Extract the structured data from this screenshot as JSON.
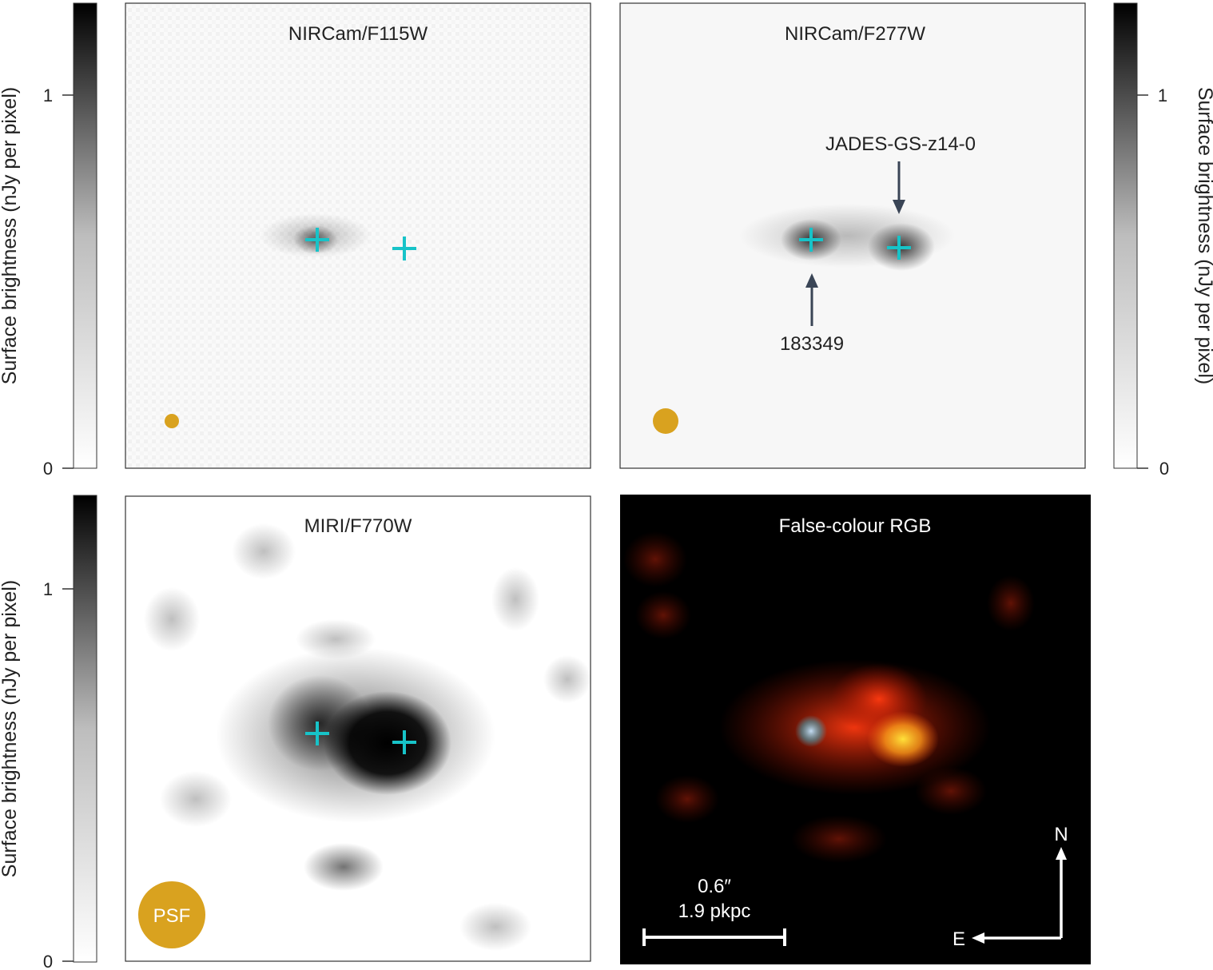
{
  "panels": {
    "tl": {
      "title": "NIRCam/F115W"
    },
    "tr": {
      "title": "NIRCam/F277W"
    },
    "bl": {
      "title": "MIRI/F770W",
      "psf_label": "PSF"
    },
    "br": {
      "title": "False-colour RGB"
    }
  },
  "colorbars": {
    "label": "Surface brightness (nJy per pixel)",
    "tick_low": "0",
    "tick_high": "1"
  },
  "annotations": {
    "source_a": "JADES-GS-z14-0",
    "source_b": "183349",
    "scale_arcsec": "0.6″",
    "scale_kpc": "1.9 pkpc",
    "compass_n": "N",
    "compass_e": "E"
  },
  "colors": {
    "marker": "#17c3c8",
    "psf": "#d9a21f",
    "arrow": "#3a4556",
    "rgb_background": "#000000"
  }
}
